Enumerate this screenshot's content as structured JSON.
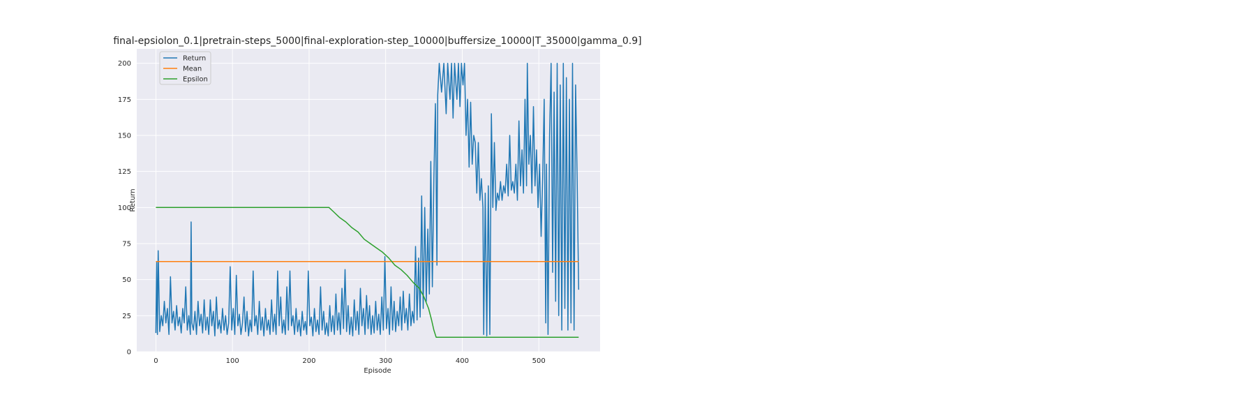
{
  "chart_data": {
    "type": "line",
    "title": "final-epsiolon_0.1|pretrain-steps_5000|final-exploration-step_10000|buffersize_10000|T_35000|gamma_0.9]",
    "xlabel": "Episode",
    "ylabel": "Return",
    "xlim": [
      -25,
      580
    ],
    "ylim": [
      0,
      210
    ],
    "xticks": [
      0,
      100,
      200,
      300,
      400,
      500
    ],
    "yticks": [
      0,
      25,
      50,
      75,
      100,
      125,
      150,
      175,
      200
    ],
    "grid": true,
    "legend_position": "top-left",
    "series": [
      {
        "name": "Return",
        "color": "#1f77b4",
        "points": [
          [
            0,
            13
          ],
          [
            1,
            62
          ],
          [
            2,
            12
          ],
          [
            3,
            70
          ],
          [
            5,
            14
          ],
          [
            7,
            25
          ],
          [
            9,
            18
          ],
          [
            11,
            35
          ],
          [
            13,
            20
          ],
          [
            15,
            30
          ],
          [
            17,
            12
          ],
          [
            19,
            52
          ],
          [
            21,
            20
          ],
          [
            23,
            28
          ],
          [
            25,
            15
          ],
          [
            27,
            32
          ],
          [
            29,
            18
          ],
          [
            31,
            24
          ],
          [
            33,
            13
          ],
          [
            35,
            30
          ],
          [
            37,
            20
          ],
          [
            39,
            45
          ],
          [
            41,
            15
          ],
          [
            43,
            25
          ],
          [
            45,
            12
          ],
          [
            46,
            90
          ],
          [
            47,
            20
          ],
          [
            49,
            15
          ],
          [
            51,
            28
          ],
          [
            53,
            12
          ],
          [
            55,
            35
          ],
          [
            57,
            18
          ],
          [
            59,
            26
          ],
          [
            61,
            13
          ],
          [
            63,
            36
          ],
          [
            65,
            15
          ],
          [
            67,
            24
          ],
          [
            69,
            12
          ],
          [
            71,
            36
          ],
          [
            73,
            18
          ],
          [
            75,
            28
          ],
          [
            77,
            11
          ],
          [
            79,
            38
          ],
          [
            81,
            16
          ],
          [
            83,
            22
          ],
          [
            85,
            13
          ],
          [
            87,
            30
          ],
          [
            89,
            15
          ],
          [
            91,
            25
          ],
          [
            93,
            12
          ],
          [
            95,
            20
          ],
          [
            97,
            59
          ],
          [
            99,
            15
          ],
          [
            101,
            30
          ],
          [
            103,
            12
          ],
          [
            105,
            53
          ],
          [
            107,
            18
          ],
          [
            109,
            26
          ],
          [
            111,
            12
          ],
          [
            113,
            20
          ],
          [
            115,
            38
          ],
          [
            117,
            14
          ],
          [
            119,
            28
          ],
          [
            121,
            11
          ],
          [
            123,
            22
          ],
          [
            125,
            14
          ],
          [
            127,
            56
          ],
          [
            129,
            18
          ],
          [
            131,
            25
          ],
          [
            133,
            12
          ],
          [
            135,
            35
          ],
          [
            137,
            15
          ],
          [
            139,
            24
          ],
          [
            141,
            11
          ],
          [
            143,
            30
          ],
          [
            145,
            15
          ],
          [
            147,
            22
          ],
          [
            149,
            12
          ],
          [
            151,
            36
          ],
          [
            153,
            14
          ],
          [
            155,
            26
          ],
          [
            157,
            12
          ],
          [
            159,
            56
          ],
          [
            161,
            18
          ],
          [
            163,
            38
          ],
          [
            165,
            13
          ],
          [
            167,
            22
          ],
          [
            169,
            12
          ],
          [
            171,
            45
          ],
          [
            173,
            15
          ],
          [
            175,
            56
          ],
          [
            177,
            18
          ],
          [
            179,
            25
          ],
          [
            181,
            12
          ],
          [
            183,
            30
          ],
          [
            185,
            14
          ],
          [
            187,
            22
          ],
          [
            189,
            11
          ],
          [
            191,
            28
          ],
          [
            193,
            15
          ],
          [
            195,
            21
          ],
          [
            197,
            12
          ],
          [
            199,
            56
          ],
          [
            201,
            18
          ],
          [
            203,
            24
          ],
          [
            205,
            11
          ],
          [
            207,
            30
          ],
          [
            209,
            14
          ],
          [
            211,
            22
          ],
          [
            213,
            12
          ],
          [
            215,
            45
          ],
          [
            217,
            15
          ],
          [
            219,
            28
          ],
          [
            221,
            12
          ],
          [
            223,
            20
          ],
          [
            225,
            11
          ],
          [
            227,
            32
          ],
          [
            229,
            14
          ],
          [
            231,
            25
          ],
          [
            233,
            12
          ],
          [
            235,
            40
          ],
          [
            237,
            15
          ],
          [
            239,
            27
          ],
          [
            241,
            12
          ],
          [
            243,
            44
          ],
          [
            245,
            16
          ],
          [
            247,
            57
          ],
          [
            249,
            14
          ],
          [
            251,
            32
          ],
          [
            253,
            12
          ],
          [
            255,
            24
          ],
          [
            257,
            11
          ],
          [
            259,
            36
          ],
          [
            261,
            15
          ],
          [
            263,
            28
          ],
          [
            265,
            12
          ],
          [
            267,
            44
          ],
          [
            269,
            18
          ],
          [
            271,
            30
          ],
          [
            273,
            12
          ],
          [
            275,
            39
          ],
          [
            277,
            16
          ],
          [
            279,
            32
          ],
          [
            281,
            12
          ],
          [
            283,
            25
          ],
          [
            285,
            13
          ],
          [
            287,
            35
          ],
          [
            289,
            15
          ],
          [
            291,
            26
          ],
          [
            293,
            12
          ],
          [
            295,
            38
          ],
          [
            297,
            15
          ],
          [
            299,
            66
          ],
          [
            301,
            16
          ],
          [
            303,
            30
          ],
          [
            305,
            12
          ],
          [
            307,
            45
          ],
          [
            309,
            15
          ],
          [
            311,
            35
          ],
          [
            313,
            14
          ],
          [
            315,
            28
          ],
          [
            317,
            18
          ],
          [
            319,
            38
          ],
          [
            321,
            15
          ],
          [
            323,
            42
          ],
          [
            325,
            20
          ],
          [
            327,
            30
          ],
          [
            329,
            15
          ],
          [
            331,
            40
          ],
          [
            333,
            18
          ],
          [
            335,
            28
          ],
          [
            337,
            20
          ],
          [
            339,
            73
          ],
          [
            341,
            22
          ],
          [
            343,
            65
          ],
          [
            345,
            24
          ],
          [
            347,
            108
          ],
          [
            349,
            30
          ],
          [
            351,
            100
          ],
          [
            353,
            35
          ],
          [
            355,
            85
          ],
          [
            357,
            40
          ],
          [
            359,
            132
          ],
          [
            361,
            45
          ],
          [
            363,
            120
          ],
          [
            365,
            172
          ],
          [
            367,
            60
          ],
          [
            368,
            178
          ],
          [
            370,
            200
          ],
          [
            373,
            180
          ],
          [
            376,
            200
          ],
          [
            379,
            165
          ],
          [
            381,
            200
          ],
          [
            384,
            175
          ],
          [
            386,
            200
          ],
          [
            388,
            162
          ],
          [
            390,
            200
          ],
          [
            393,
            175
          ],
          [
            395,
            200
          ],
          [
            397,
            170
          ],
          [
            399,
            200
          ],
          [
            401,
            185
          ],
          [
            403,
            200
          ],
          [
            405,
            150
          ],
          [
            407,
            175
          ],
          [
            409,
            128
          ],
          [
            411,
            173
          ],
          [
            413,
            130
          ],
          [
            415,
            150
          ],
          [
            417,
            145
          ],
          [
            419,
            110
          ],
          [
            421,
            145
          ],
          [
            423,
            105
          ],
          [
            425,
            120
          ],
          [
            427,
            100
          ],
          [
            428,
            12
          ],
          [
            430,
            110
          ],
          [
            432,
            11
          ],
          [
            434,
            115
          ],
          [
            436,
            12
          ],
          [
            438,
            165
          ],
          [
            440,
            100
          ],
          [
            442,
            145
          ],
          [
            444,
            98
          ],
          [
            446,
            110
          ],
          [
            448,
            105
          ],
          [
            450,
            118
          ],
          [
            452,
            105
          ],
          [
            454,
            115
          ],
          [
            456,
            110
          ],
          [
            458,
            130
          ],
          [
            460,
            108
          ],
          [
            462,
            150
          ],
          [
            464,
            112
          ],
          [
            466,
            118
          ],
          [
            468,
            110
          ],
          [
            470,
            130
          ],
          [
            472,
            105
          ],
          [
            474,
            160
          ],
          [
            476,
            115
          ],
          [
            478,
            140
          ],
          [
            480,
            110
          ],
          [
            482,
            175
          ],
          [
            484,
            115
          ],
          [
            485,
            200
          ],
          [
            487,
            130
          ],
          [
            489,
            150
          ],
          [
            491,
            110
          ],
          [
            493,
            170
          ],
          [
            495,
            115
          ],
          [
            497,
            140
          ],
          [
            499,
            100
          ],
          [
            501,
            130
          ],
          [
            503,
            80
          ],
          [
            505,
            120
          ],
          [
            507,
            175
          ],
          [
            509,
            20
          ],
          [
            510,
            130
          ],
          [
            512,
            12
          ],
          [
            514,
            150
          ],
          [
            516,
            200
          ],
          [
            518,
            55
          ],
          [
            520,
            180
          ],
          [
            522,
            35
          ],
          [
            524,
            200
          ],
          [
            526,
            25
          ],
          [
            528,
            185
          ],
          [
            530,
            15
          ],
          [
            532,
            200
          ],
          [
            534,
            30
          ],
          [
            536,
            190
          ],
          [
            538,
            15
          ],
          [
            540,
            175
          ],
          [
            542,
            20
          ],
          [
            544,
            200
          ],
          [
            546,
            15
          ],
          [
            548,
            185
          ],
          [
            550,
            120
          ],
          [
            552,
            43
          ]
        ]
      },
      {
        "name": "Mean",
        "color": "#ff7f0e",
        "points": [
          [
            0,
            62.5
          ],
          [
            552,
            62.5
          ]
        ]
      },
      {
        "name": "Epsilon",
        "color": "#2ca02c",
        "points": [
          [
            0,
            100
          ],
          [
            226,
            100
          ],
          [
            232,
            97
          ],
          [
            240,
            93
          ],
          [
            248,
            90
          ],
          [
            256,
            86
          ],
          [
            264,
            83
          ],
          [
            272,
            78
          ],
          [
            280,
            75
          ],
          [
            288,
            72
          ],
          [
            296,
            69
          ],
          [
            304,
            65
          ],
          [
            312,
            60
          ],
          [
            320,
            57
          ],
          [
            328,
            53
          ],
          [
            336,
            48
          ],
          [
            344,
            44
          ],
          [
            350,
            38
          ],
          [
            356,
            30
          ],
          [
            360,
            22
          ],
          [
            363,
            15
          ],
          [
            366,
            10
          ],
          [
            552,
            10
          ]
        ]
      }
    ]
  }
}
